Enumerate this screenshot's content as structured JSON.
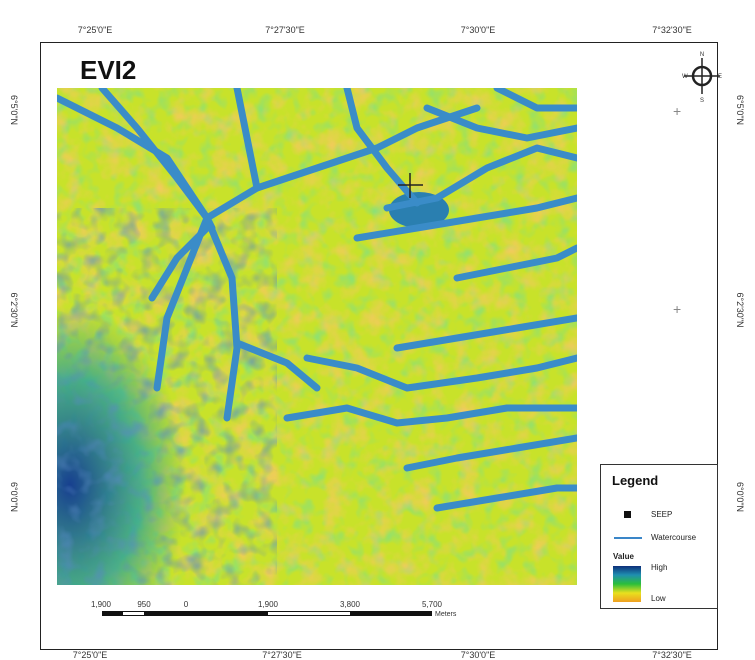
{
  "map": {
    "title": "EVI2",
    "top_ticks": [
      "7°25'0\"E",
      "7°27'30\"E",
      "7°30'0\"E",
      "7°32'30\"E"
    ],
    "bottom_ticks": [
      "7°25'0\"E",
      "7°27'30\"E",
      "7°30'0\"E",
      "7°32'30\"E"
    ],
    "left_ticks": [
      "6°5'0\"N",
      "6°2'30\"N",
      "6°0'0\"N"
    ],
    "right_ticks": [
      "6°5'0\"N",
      "6°2'30\"N",
      "6°0'0\"N"
    ]
  },
  "legend": {
    "title": "Legend",
    "items": [
      {
        "label": "SEEP",
        "symbol": "square",
        "color": "#111111"
      },
      {
        "label": "Watercourse",
        "symbol": "line",
        "color": "#3a86c8"
      }
    ],
    "value_heading": "Value",
    "high_label": "High",
    "low_label": "Low",
    "ramp": [
      "#0d2f7a",
      "#1f8fb0",
      "#2bbf3a",
      "#e8e01e",
      "#f0a020"
    ]
  },
  "scalebar": {
    "labels": [
      "1,900",
      "950",
      "0",
      "1,900",
      "3,800",
      "5,700"
    ],
    "units": "Meters"
  },
  "colors": {
    "deep_blue": "#173f8f",
    "teal": "#2aa19a",
    "green": "#30c040",
    "yellow_green": "#b8e02a",
    "yellow": "#f0e024",
    "orange": "#e8a030",
    "river": "#3a8cc8"
  }
}
